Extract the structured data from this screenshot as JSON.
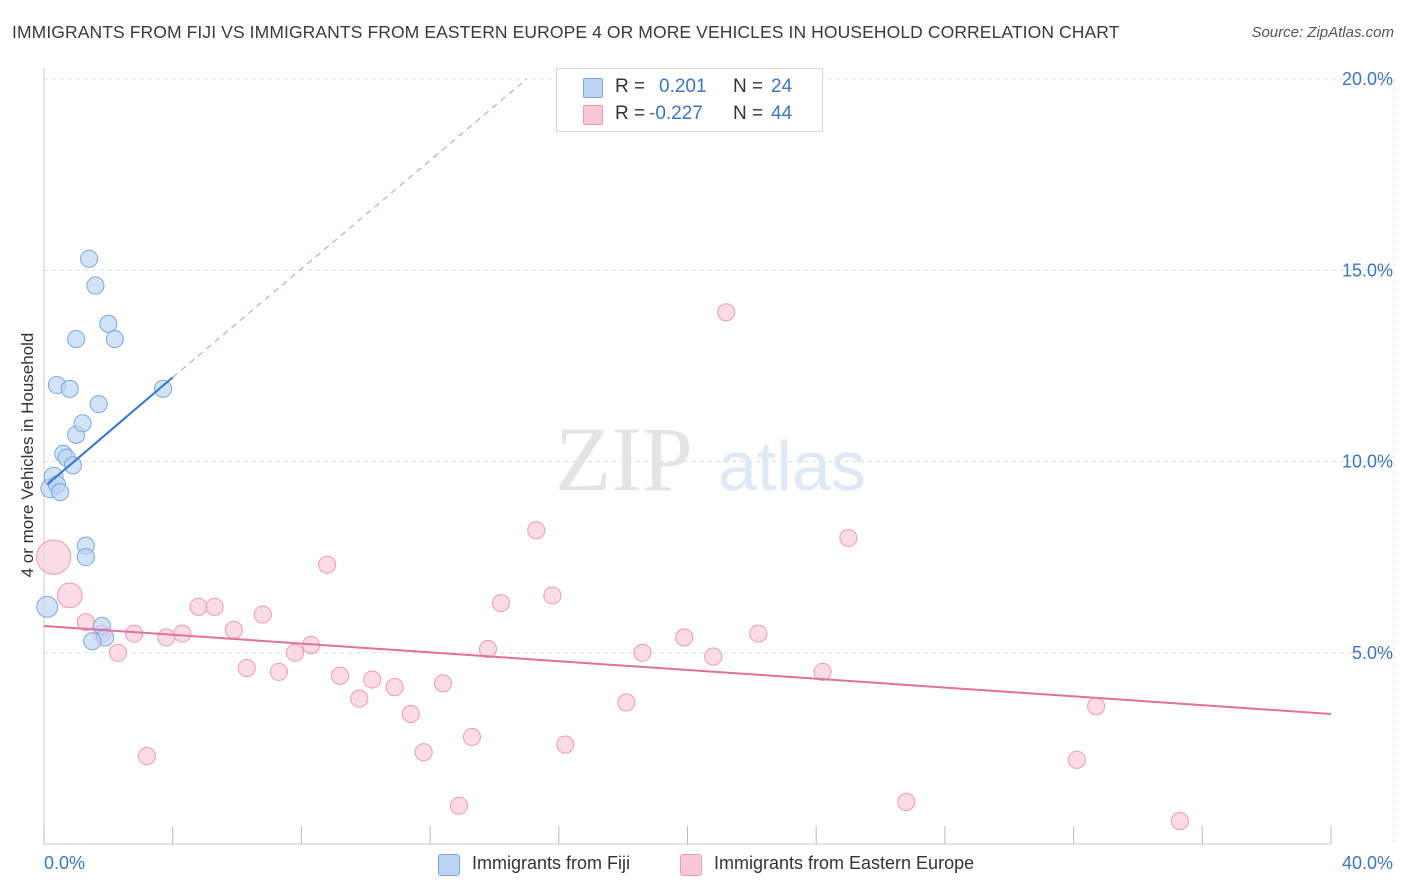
{
  "title": "IMMIGRANTS FROM FIJI VS IMMIGRANTS FROM EASTERN EUROPE 4 OR MORE VEHICLES IN HOUSEHOLD CORRELATION CHART",
  "source": "Source: ZipAtlas.com",
  "watermark": {
    "zip": "ZIP",
    "atlas": "atlas"
  },
  "legend_top": {
    "rows": [
      {
        "r_label": "R =",
        "r_value": "0.201",
        "n_label": "N =",
        "n_value": "24"
      },
      {
        "r_label": "R =",
        "r_value": "-0.227",
        "n_label": "N =",
        "n_value": "44"
      }
    ]
  },
  "legend_bottom": [
    "Immigrants from Fiji",
    "Immigrants from Eastern Europe"
  ],
  "colors": {
    "fiji_fill": "#bcd4f3",
    "fiji_stroke": "#7aa7df",
    "fiji_line": "#3374d0",
    "ee_fill": "#f8c8d8",
    "ee_stroke": "#ee9ab5",
    "ee_line": "#e2709a",
    "tick_label": "#3a76c4",
    "grid": "#dddddd"
  },
  "chart_data": {
    "type": "scatter",
    "title": "IMMIGRANTS FROM FIJI VS IMMIGRANTS FROM EASTERN EUROPE 4 OR MORE VEHICLES IN HOUSEHOLD CORRELATION CHART",
    "xlabel": "",
    "ylabel": "4 or more Vehicles in Household",
    "xlim": [
      0,
      40
    ],
    "ylim": [
      0,
      20
    ],
    "x_tick_labels": [
      "0.0%",
      "40.0%"
    ],
    "y_tick_labels": [
      "5.0%",
      "10.0%",
      "15.0%",
      "20.0%"
    ],
    "y_ticks": [
      5,
      10,
      15,
      20
    ],
    "grid": true,
    "legend_position": "bottom",
    "series": [
      {
        "name": "Immigrants from Fiji",
        "r": 0.201,
        "n": 24,
        "points": [
          {
            "x": 0.1,
            "y": 6.2,
            "s": 1.1
          },
          {
            "x": 0.2,
            "y": 9.3,
            "s": 1.0
          },
          {
            "x": 0.3,
            "y": 9.6,
            "s": 1.0
          },
          {
            "x": 0.4,
            "y": 9.4,
            "s": 0.9
          },
          {
            "x": 0.5,
            "y": 9.2,
            "s": 0.9
          },
          {
            "x": 0.6,
            "y": 10.2,
            "s": 0.9
          },
          {
            "x": 0.7,
            "y": 10.1,
            "s": 0.9
          },
          {
            "x": 0.9,
            "y": 9.9,
            "s": 0.9
          },
          {
            "x": 1.0,
            "y": 10.7,
            "s": 0.9
          },
          {
            "x": 1.0,
            "y": 13.2,
            "s": 0.9
          },
          {
            "x": 1.2,
            "y": 11.0,
            "s": 0.9
          },
          {
            "x": 0.4,
            "y": 12.0,
            "s": 0.9
          },
          {
            "x": 0.8,
            "y": 11.9,
            "s": 0.9
          },
          {
            "x": 1.7,
            "y": 11.5,
            "s": 0.9
          },
          {
            "x": 1.4,
            "y": 15.3,
            "s": 0.9
          },
          {
            "x": 1.6,
            "y": 14.6,
            "s": 0.9
          },
          {
            "x": 2.0,
            "y": 13.6,
            "s": 0.9
          },
          {
            "x": 2.2,
            "y": 13.2,
            "s": 0.9
          },
          {
            "x": 1.3,
            "y": 7.8,
            "s": 0.9
          },
          {
            "x": 1.3,
            "y": 7.5,
            "s": 0.9
          },
          {
            "x": 1.8,
            "y": 5.7,
            "s": 0.9
          },
          {
            "x": 1.9,
            "y": 5.4,
            "s": 0.9
          },
          {
            "x": 1.5,
            "y": 5.3,
            "s": 0.9
          },
          {
            "x": 3.7,
            "y": 11.9,
            "s": 0.9
          }
        ],
        "trend": {
          "x1": 0.1,
          "y1": 9.4,
          "x2": 4.0,
          "y2": 12.2,
          "dashed_to": {
            "x": 15.0,
            "y": 20.0
          }
        }
      },
      {
        "name": "Immigrants from Eastern Europe",
        "r": -0.227,
        "n": 44,
        "points": [
          {
            "x": 0.3,
            "y": 7.5,
            "s": 1.8
          },
          {
            "x": 0.8,
            "y": 6.5,
            "s": 1.3
          },
          {
            "x": 1.3,
            "y": 5.8,
            "s": 0.9
          },
          {
            "x": 1.8,
            "y": 5.5,
            "s": 0.9
          },
          {
            "x": 2.3,
            "y": 5.0,
            "s": 0.9
          },
          {
            "x": 2.8,
            "y": 5.5,
            "s": 0.9
          },
          {
            "x": 3.2,
            "y": 2.3,
            "s": 0.9
          },
          {
            "x": 3.8,
            "y": 5.4,
            "s": 0.9
          },
          {
            "x": 4.3,
            "y": 5.5,
            "s": 0.9
          },
          {
            "x": 4.8,
            "y": 6.2,
            "s": 0.9
          },
          {
            "x": 5.3,
            "y": 6.2,
            "s": 0.9
          },
          {
            "x": 5.9,
            "y": 5.6,
            "s": 0.9
          },
          {
            "x": 6.3,
            "y": 4.6,
            "s": 0.9
          },
          {
            "x": 6.8,
            "y": 6.0,
            "s": 0.9
          },
          {
            "x": 7.3,
            "y": 4.5,
            "s": 0.9
          },
          {
            "x": 7.8,
            "y": 5.0,
            "s": 0.9
          },
          {
            "x": 8.3,
            "y": 5.2,
            "s": 0.9
          },
          {
            "x": 8.8,
            "y": 7.3,
            "s": 0.9
          },
          {
            "x": 9.2,
            "y": 4.4,
            "s": 0.9
          },
          {
            "x": 9.8,
            "y": 3.8,
            "s": 0.9
          },
          {
            "x": 10.2,
            "y": 4.3,
            "s": 0.9
          },
          {
            "x": 10.9,
            "y": 4.1,
            "s": 0.9
          },
          {
            "x": 11.4,
            "y": 3.4,
            "s": 0.9
          },
          {
            "x": 11.8,
            "y": 2.4,
            "s": 0.9
          },
          {
            "x": 12.4,
            "y": 4.2,
            "s": 0.9
          },
          {
            "x": 12.9,
            "y": 1.0,
            "s": 0.9
          },
          {
            "x": 13.3,
            "y": 2.8,
            "s": 0.9
          },
          {
            "x": 13.8,
            "y": 5.1,
            "s": 0.9
          },
          {
            "x": 14.2,
            "y": 6.3,
            "s": 0.9
          },
          {
            "x": 15.3,
            "y": 8.2,
            "s": 0.9
          },
          {
            "x": 15.8,
            "y": 6.5,
            "s": 0.9
          },
          {
            "x": 16.2,
            "y": 2.6,
            "s": 0.9
          },
          {
            "x": 18.1,
            "y": 3.7,
            "s": 0.9
          },
          {
            "x": 18.6,
            "y": 5.0,
            "s": 0.9
          },
          {
            "x": 19.9,
            "y": 5.4,
            "s": 0.9
          },
          {
            "x": 20.8,
            "y": 4.9,
            "s": 0.9
          },
          {
            "x": 21.2,
            "y": 13.9,
            "s": 0.9
          },
          {
            "x": 22.2,
            "y": 5.5,
            "s": 0.9
          },
          {
            "x": 24.2,
            "y": 4.5,
            "s": 0.9
          },
          {
            "x": 25.0,
            "y": 8.0,
            "s": 0.9
          },
          {
            "x": 26.8,
            "y": 1.1,
            "s": 0.9
          },
          {
            "x": 32.1,
            "y": 2.2,
            "s": 0.9
          },
          {
            "x": 32.7,
            "y": 3.6,
            "s": 0.9
          },
          {
            "x": 35.3,
            "y": 0.6,
            "s": 0.9
          }
        ],
        "trend": {
          "x1": 0.0,
          "y1": 5.7,
          "x2": 40.0,
          "y2": 3.4
        }
      }
    ]
  }
}
